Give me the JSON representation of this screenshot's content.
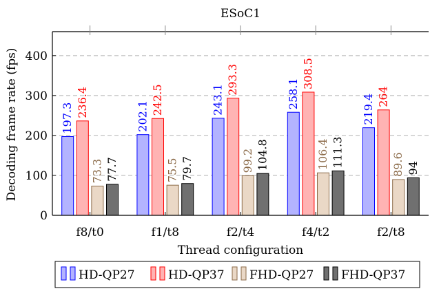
{
  "chart_data": {
    "type": "bar",
    "title": "ESoC1",
    "xlabel": "Thread configuration",
    "ylabel": "Decoding frame rate (fps)",
    "ylim": [
      0,
      460
    ],
    "yticks": [
      0,
      100,
      200,
      300,
      400
    ],
    "grid": "horizontal-dashed",
    "legend_position": "bottom",
    "categories": [
      "f8/t0",
      "f1/t8",
      "f2/t4",
      "f4/t2",
      "f2/t8"
    ],
    "series": [
      {
        "name": "HD-QP27",
        "values": [
          197.3,
          202.1,
          243.1,
          258.1,
          219.4
        ],
        "labels": [
          "197.3",
          "202.1",
          "243.1",
          "258.1",
          "219.4"
        ],
        "fill": "#b3b3ff",
        "stroke": "#0000ff",
        "label_color": "#0000ff"
      },
      {
        "name": "HD-QP37",
        "values": [
          236.4,
          242.5,
          293.3,
          308.5,
          264
        ],
        "labels": [
          "236.4",
          "242.5",
          "293.3",
          "308.5",
          "264"
        ],
        "fill": "#ffb3b3",
        "stroke": "#ff0000",
        "label_color": "#ff0000"
      },
      {
        "name": "FHD-QP27",
        "values": [
          73.3,
          75.5,
          99.2,
          106.4,
          89.6
        ],
        "labels": [
          "73.3",
          "75.5",
          "99.2",
          "106.4",
          "89.6"
        ],
        "fill": "#ead8c6",
        "stroke": "#8b6a48",
        "label_color": "#8b6a48"
      },
      {
        "name": "FHD-QP37",
        "values": [
          77.7,
          79.7,
          104.8,
          111.3,
          94
        ],
        "labels": [
          "77.7",
          "79.7",
          "104.8",
          "111.3",
          "94"
        ],
        "fill": "#707070",
        "stroke": "#000000",
        "label_color": "#000000"
      }
    ]
  }
}
